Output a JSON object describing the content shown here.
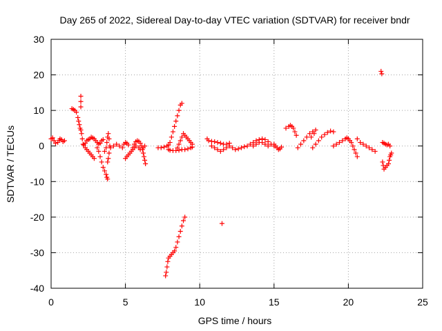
{
  "chart_data": {
    "type": "scatter",
    "title": "Day 265 of 2022, Sidereal Day-to-day VTEC variation (SDTVAR) for receiver bndr",
    "xlabel": "GPS time / hours",
    "ylabel": "SDTVAR / TECUs",
    "xlim": [
      0,
      25
    ],
    "ylim": [
      -40,
      30
    ],
    "xticks": [
      0,
      5,
      10,
      15,
      20,
      25
    ],
    "yticks": [
      -40,
      -30,
      -20,
      -10,
      0,
      10,
      20,
      30
    ],
    "grid": true,
    "marker": "+",
    "colors": {
      "series": "#ff0000",
      "grid": "#a0a0a0",
      "axis": "#000000"
    },
    "series": [
      {
        "name": "SDTVAR",
        "points": [
          [
            0.0,
            2.0
          ],
          [
            0.1,
            2.3
          ],
          [
            0.2,
            1.5
          ],
          [
            0.3,
            0.8
          ],
          [
            0.45,
            1.0
          ],
          [
            0.55,
            1.6
          ],
          [
            0.6,
            2.0
          ],
          [
            0.7,
            1.8
          ],
          [
            0.8,
            1.2
          ],
          [
            0.9,
            1.5
          ],
          [
            1.4,
            10.5
          ],
          [
            1.5,
            10.3
          ],
          [
            1.6,
            10.0
          ],
          [
            1.7,
            9.5
          ],
          [
            1.8,
            8.0
          ],
          [
            1.85,
            7.0
          ],
          [
            1.9,
            6.0
          ],
          [
            1.95,
            5.0
          ],
          [
            2.0,
            4.5
          ],
          [
            2.0,
            14.0
          ],
          [
            2.0,
            12.5
          ],
          [
            2.0,
            11.0
          ],
          [
            2.05,
            3.5
          ],
          [
            2.1,
            2.0
          ],
          [
            2.15,
            0.5
          ],
          [
            2.2,
            0.3
          ],
          [
            2.3,
            0.8
          ],
          [
            2.4,
            1.5
          ],
          [
            2.5,
            1.8
          ],
          [
            2.6,
            2.0
          ],
          [
            2.7,
            2.5
          ],
          [
            2.8,
            2.3
          ],
          [
            2.9,
            2.0
          ],
          [
            3.0,
            1.5
          ],
          [
            3.1,
            1.0
          ],
          [
            3.2,
            0.5
          ],
          [
            3.3,
            0.8
          ],
          [
            3.4,
            1.5
          ],
          [
            3.5,
            1.8
          ],
          [
            2.3,
            -0.5
          ],
          [
            2.4,
            -1.0
          ],
          [
            2.5,
            -1.5
          ],
          [
            2.6,
            -2.0
          ],
          [
            2.7,
            -2.5
          ],
          [
            2.8,
            -3.0
          ],
          [
            2.9,
            -3.5
          ],
          [
            3.1,
            -0.5
          ],
          [
            3.2,
            -1.5
          ],
          [
            3.3,
            -3.0
          ],
          [
            3.4,
            -4.5
          ],
          [
            3.5,
            -6.0
          ],
          [
            3.6,
            -7.0
          ],
          [
            3.7,
            -8.0
          ],
          [
            3.75,
            -8.8
          ],
          [
            3.8,
            -9.3
          ],
          [
            3.6,
            -1.5
          ],
          [
            3.7,
            -0.5
          ],
          [
            3.75,
            1.0
          ],
          [
            3.8,
            2.5
          ],
          [
            3.85,
            3.5
          ],
          [
            3.9,
            2.0
          ],
          [
            3.95,
            0.0
          ],
          [
            3.9,
            -2.0
          ],
          [
            3.85,
            -3.5
          ],
          [
            3.8,
            -4.5
          ],
          [
            4.0,
            -0.5
          ],
          [
            4.2,
            0.0
          ],
          [
            4.4,
            0.5
          ],
          [
            4.6,
            0.0
          ],
          [
            4.8,
            -0.5
          ],
          [
            4.9,
            0.5
          ],
          [
            5.0,
            1.0
          ],
          [
            5.1,
            0.8
          ],
          [
            5.2,
            0.3
          ],
          [
            5.0,
            -3.5
          ],
          [
            5.1,
            -3.0
          ],
          [
            5.2,
            -2.5
          ],
          [
            5.3,
            -2.0
          ],
          [
            5.4,
            -1.5
          ],
          [
            5.5,
            -0.5
          ],
          [
            5.6,
            0.5
          ],
          [
            5.7,
            1.2
          ],
          [
            5.8,
            1.5
          ],
          [
            5.9,
            1.3
          ],
          [
            6.0,
            0.8
          ],
          [
            6.1,
            0.0
          ],
          [
            6.15,
            -1.0
          ],
          [
            6.2,
            -2.0
          ],
          [
            6.25,
            -3.0
          ],
          [
            6.3,
            -4.0
          ],
          [
            6.35,
            -5.0
          ],
          [
            5.5,
            -1.0
          ],
          [
            5.6,
            -0.5
          ],
          [
            5.7,
            0.0
          ],
          [
            5.9,
            -0.5
          ],
          [
            6.0,
            -1.0
          ],
          [
            6.2,
            -0.5
          ],
          [
            6.3,
            0.0
          ],
          [
            7.2,
            -0.5
          ],
          [
            7.4,
            -0.5
          ],
          [
            7.6,
            -0.3
          ],
          [
            7.8,
            0.0
          ],
          [
            7.9,
            0.3
          ],
          [
            8.0,
            1.0
          ],
          [
            8.1,
            2.5
          ],
          [
            8.2,
            4.0
          ],
          [
            8.3,
            5.5
          ],
          [
            8.4,
            7.0
          ],
          [
            8.5,
            8.5
          ],
          [
            8.6,
            10.0
          ],
          [
            8.7,
            11.5
          ],
          [
            8.8,
            12.0
          ],
          [
            7.9,
            -1.0
          ],
          [
            8.0,
            -1.2
          ],
          [
            8.2,
            -1.3
          ],
          [
            8.4,
            -1.3
          ],
          [
            8.6,
            -1.2
          ],
          [
            8.8,
            -1.0
          ],
          [
            9.0,
            -1.0
          ],
          [
            9.2,
            -0.8
          ],
          [
            9.4,
            -0.5
          ],
          [
            9.5,
            -0.3
          ],
          [
            8.5,
            -0.5
          ],
          [
            8.6,
            0.5
          ],
          [
            8.7,
            1.5
          ],
          [
            8.8,
            2.5
          ],
          [
            8.9,
            3.5
          ],
          [
            9.0,
            3.0
          ],
          [
            9.1,
            2.5
          ],
          [
            9.2,
            2.0
          ],
          [
            9.3,
            1.5
          ],
          [
            9.4,
            1.0
          ],
          [
            9.5,
            0.5
          ],
          [
            7.7,
            -36.5
          ],
          [
            7.75,
            -35.5
          ],
          [
            7.8,
            -34.0
          ],
          [
            7.85,
            -32.5
          ],
          [
            7.9,
            -31.5
          ],
          [
            8.0,
            -31.0
          ],
          [
            8.1,
            -30.5
          ],
          [
            8.2,
            -30.0
          ],
          [
            8.3,
            -29.5
          ],
          [
            8.4,
            -28.5
          ],
          [
            8.5,
            -27.0
          ],
          [
            8.6,
            -25.5
          ],
          [
            8.7,
            -24.0
          ],
          [
            8.8,
            -22.5
          ],
          [
            8.9,
            -21.0
          ],
          [
            9.0,
            -20.0
          ],
          [
            10.5,
            2.0
          ],
          [
            10.6,
            1.5
          ],
          [
            10.8,
            1.3
          ],
          [
            11.0,
            1.2
          ],
          [
            11.2,
            1.0
          ],
          [
            11.4,
            0.8
          ],
          [
            11.6,
            0.5
          ],
          [
            11.8,
            0.5
          ],
          [
            12.0,
            0.8
          ],
          [
            10.8,
            0.0
          ],
          [
            11.0,
            -0.5
          ],
          [
            11.2,
            -1.0
          ],
          [
            11.4,
            -1.5
          ],
          [
            11.6,
            -1.0
          ],
          [
            11.8,
            -0.5
          ],
          [
            12.0,
            0.0
          ],
          [
            12.2,
            -0.5
          ],
          [
            12.4,
            -1.0
          ],
          [
            12.6,
            -0.8
          ],
          [
            12.8,
            -0.5
          ],
          [
            13.0,
            -0.2
          ],
          [
            11.5,
            -21.8
          ],
          [
            13.2,
            0.0
          ],
          [
            13.4,
            0.5
          ],
          [
            13.6,
            1.0
          ],
          [
            13.8,
            1.5
          ],
          [
            14.0,
            1.8
          ],
          [
            14.2,
            2.0
          ],
          [
            14.4,
            1.8
          ],
          [
            14.6,
            1.2
          ],
          [
            14.8,
            0.5
          ],
          [
            15.0,
            0.0
          ],
          [
            13.6,
            0.0
          ],
          [
            13.8,
            0.5
          ],
          [
            14.0,
            1.0
          ],
          [
            14.2,
            1.0
          ],
          [
            14.4,
            0.5
          ],
          [
            14.6,
            0.0
          ],
          [
            15.0,
            0.5
          ],
          [
            15.1,
            0.0
          ],
          [
            15.2,
            -0.5
          ],
          [
            15.3,
            -1.0
          ],
          [
            15.4,
            -0.8
          ],
          [
            15.5,
            -0.3
          ],
          [
            15.8,
            5.0
          ],
          [
            16.0,
            5.5
          ],
          [
            16.1,
            5.8
          ],
          [
            16.2,
            5.5
          ],
          [
            16.3,
            5.0
          ],
          [
            16.4,
            4.0
          ],
          [
            16.5,
            3.0
          ],
          [
            16.6,
            -0.5
          ],
          [
            16.8,
            0.5
          ],
          [
            17.0,
            1.5
          ],
          [
            17.2,
            2.5
          ],
          [
            17.4,
            3.5
          ],
          [
            17.6,
            4.0
          ],
          [
            17.8,
            4.5
          ],
          [
            17.5,
            2.5
          ],
          [
            17.7,
            3.5
          ],
          [
            17.6,
            -0.5
          ],
          [
            17.8,
            0.5
          ],
          [
            18.0,
            1.5
          ],
          [
            18.2,
            2.5
          ],
          [
            18.4,
            3.2
          ],
          [
            18.6,
            3.8
          ],
          [
            18.8,
            4.2
          ],
          [
            19.0,
            4.0
          ],
          [
            19.0,
            0.0
          ],
          [
            19.2,
            0.5
          ],
          [
            19.4,
            1.0
          ],
          [
            19.6,
            1.5
          ],
          [
            19.8,
            2.0
          ],
          [
            19.9,
            2.3
          ],
          [
            20.0,
            2.0
          ],
          [
            20.1,
            1.5
          ],
          [
            20.2,
            1.0
          ],
          [
            20.3,
            0.0
          ],
          [
            20.4,
            -1.0
          ],
          [
            20.5,
            -2.0
          ],
          [
            20.6,
            -3.0
          ],
          [
            20.6,
            2.0
          ],
          [
            20.8,
            1.0
          ],
          [
            21.0,
            0.5
          ],
          [
            21.2,
            0.0
          ],
          [
            21.4,
            -0.5
          ],
          [
            21.6,
            -1.0
          ],
          [
            21.8,
            -1.5
          ],
          [
            22.2,
            21.0
          ],
          [
            22.25,
            20.3
          ],
          [
            22.3,
            1.0
          ],
          [
            22.4,
            0.8
          ],
          [
            22.5,
            0.5
          ],
          [
            22.6,
            0.3
          ],
          [
            22.7,
            0.5
          ],
          [
            22.8,
            0.0
          ],
          [
            22.3,
            -4.5
          ],
          [
            22.35,
            -5.5
          ],
          [
            22.4,
            -6.5
          ],
          [
            22.5,
            -6.0
          ],
          [
            22.6,
            -5.5
          ],
          [
            22.7,
            -5.0
          ],
          [
            22.75,
            -4.0
          ],
          [
            22.8,
            -3.0
          ],
          [
            22.85,
            -2.5
          ],
          [
            22.9,
            -2.0
          ]
        ]
      }
    ]
  }
}
